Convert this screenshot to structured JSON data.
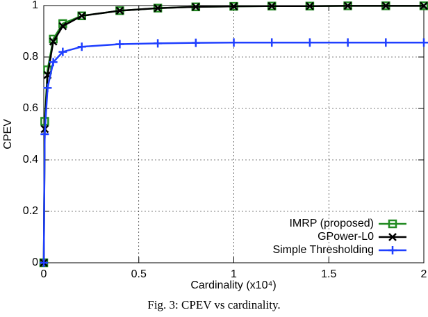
{
  "chart_data": {
    "type": "line",
    "xlabel": "Cardinality (x10⁴)",
    "ylabel": "CPEV",
    "caption": "Fig. 3: CPEV vs cardinality.",
    "x": [
      0,
      0.005,
      0.02,
      0.05,
      0.1,
      0.2,
      0.4,
      0.6,
      0.8,
      1.0,
      1.2,
      1.4,
      1.6,
      1.8,
      2.0
    ],
    "series": [
      {
        "name": "IMRP (proposed)",
        "color": "#228b22",
        "marker": "square",
        "values": [
          0,
          0.55,
          0.75,
          0.87,
          0.93,
          0.96,
          0.98,
          0.99,
          0.995,
          0.997,
          0.998,
          0.998,
          0.999,
          0.999,
          0.999
        ]
      },
      {
        "name": "GPower-L0",
        "color": "#000000",
        "marker": "cross",
        "values": [
          0,
          0.52,
          0.73,
          0.86,
          0.92,
          0.96,
          0.98,
          0.99,
          0.995,
          0.997,
          0.998,
          0.998,
          0.999,
          0.999,
          0.999
        ]
      },
      {
        "name": "Simple Thresholding",
        "color": "#1f3fff",
        "marker": "plus",
        "values": [
          0,
          0.5,
          0.68,
          0.78,
          0.82,
          0.84,
          0.85,
          0.853,
          0.855,
          0.856,
          0.856,
          0.856,
          0.856,
          0.856,
          0.856
        ]
      }
    ],
    "xlim": [
      0,
      2
    ],
    "xticks": [
      0,
      0.5,
      1,
      1.5,
      2
    ],
    "ylim": [
      0,
      1
    ],
    "yticks": [
      0,
      0.2,
      0.4,
      0.6,
      0.8,
      1
    ],
    "grid": true,
    "legend": "lower right"
  }
}
